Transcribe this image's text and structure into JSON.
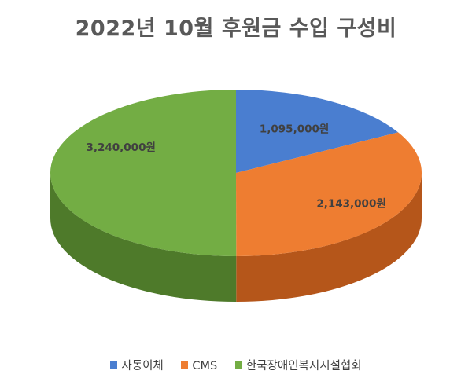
{
  "chart_data": {
    "type": "pie",
    "style": "3d",
    "title": "2022년 10월 후원금 수입 구성비",
    "categories": [
      "자동이체",
      "CMS",
      "한국장애인복지시설협회"
    ],
    "values": [
      1095000,
      2143000,
      3240000
    ],
    "data_labels": [
      "1,095,000원",
      "2,143,000원",
      "3,240,000원"
    ],
    "colors": [
      "#4a7ed0",
      "#ee7d31",
      "#73ad44"
    ],
    "side_colors": [
      "#2f5597",
      "#b5561a",
      "#4e7a2a"
    ],
    "legend_position": "bottom"
  }
}
